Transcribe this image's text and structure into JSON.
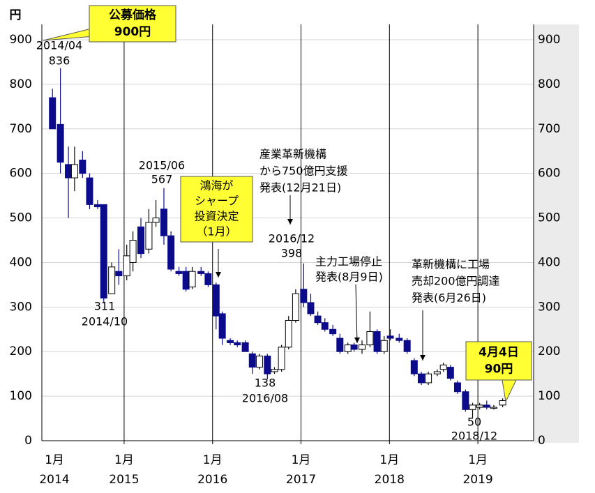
{
  "chart_data": {
    "type": "candlestick",
    "y_label": "円",
    "ylim": [
      0,
      900
    ],
    "yticks": [
      0,
      100,
      200,
      300,
      400,
      500,
      600,
      700,
      800,
      900
    ],
    "y2lim": [
      0,
      900
    ],
    "y2ticks": [
      0,
      100,
      200,
      300,
      400,
      500,
      600,
      700,
      800,
      900
    ],
    "xlim": [
      2014.07,
      2019.63
    ],
    "xticks": [
      {
        "value": 2014,
        "label": "2014",
        "month": "1月"
      },
      {
        "value": 2015,
        "label": "2015",
        "month": "1月"
      },
      {
        "value": 2016,
        "label": "2016",
        "month": "1月"
      },
      {
        "value": 2017,
        "label": "2017",
        "month": "1月"
      },
      {
        "value": 2018,
        "label": "2018",
        "month": "1月"
      },
      {
        "value": 2019,
        "label": "2019",
        "month": "1月"
      }
    ],
    "grid": true,
    "up_color": "#ffffff",
    "down_color": "#0b0b8c",
    "x": [
      2014.19,
      2014.28,
      2014.37,
      2014.44,
      2014.53,
      2014.61,
      2014.7,
      2014.77,
      2014.86,
      2014.94,
      2015.03,
      2015.1,
      2015.19,
      2015.28,
      2015.36,
      2015.45,
      2015.53,
      2015.62,
      2015.7,
      2015.77,
      2015.87,
      2015.95,
      2016.04,
      2016.11,
      2016.2,
      2016.28,
      2016.37,
      2016.45,
      2016.53,
      2016.62,
      2016.7,
      2016.78,
      2016.86,
      2016.94,
      2017.03,
      2017.11,
      2017.19,
      2017.27,
      2017.36,
      2017.44,
      2017.53,
      2017.6,
      2017.69,
      2017.78,
      2017.86,
      2017.94,
      2018.01,
      2018.11,
      2018.2,
      2018.28,
      2018.36,
      2018.44,
      2018.54,
      2018.61,
      2018.69,
      2018.77,
      2018.86,
      2018.94,
      2019.02,
      2019.1,
      2019.18,
      2019.28
    ],
    "open": [
      770,
      710,
      620,
      590,
      630,
      590,
      530,
      530,
      330,
      380,
      370,
      400,
      480,
      430,
      490,
      520,
      460,
      380,
      380,
      345,
      380,
      375,
      350,
      285,
      225,
      220,
      220,
      195,
      165,
      190,
      155,
      160,
      210,
      270,
      340,
      310,
      280,
      265,
      250,
      230,
      200,
      215,
      205,
      215,
      245,
      200,
      235,
      230,
      225,
      180,
      150,
      130,
      150,
      160,
      165,
      130,
      110,
      70,
      75,
      80,
      75,
      80
    ],
    "high": [
      790,
      836,
      660,
      660,
      650,
      600,
      540,
      530,
      400,
      430,
      440,
      470,
      500,
      520,
      540,
      567,
      470,
      390,
      390,
      390,
      390,
      380,
      355,
      290,
      230,
      225,
      225,
      200,
      195,
      195,
      165,
      215,
      280,
      340,
      398,
      330,
      290,
      275,
      260,
      240,
      220,
      220,
      225,
      290,
      250,
      235,
      250,
      240,
      230,
      185,
      155,
      155,
      160,
      175,
      170,
      135,
      115,
      85,
      85,
      90,
      80,
      95
    ],
    "low": [
      700,
      600,
      500,
      560,
      590,
      520,
      520,
      311,
      330,
      350,
      360,
      380,
      410,
      420,
      480,
      440,
      380,
      370,
      335,
      340,
      370,
      345,
      250,
      215,
      215,
      210,
      200,
      150,
      160,
      138,
      150,
      155,
      205,
      265,
      300,
      280,
      260,
      245,
      235,
      195,
      195,
      200,
      195,
      210,
      195,
      195,
      225,
      220,
      195,
      145,
      125,
      125,
      145,
      155,
      135,
      105,
      65,
      50,
      70,
      70,
      70,
      75
    ],
    "close": [
      700,
      625,
      590,
      620,
      600,
      530,
      525,
      320,
      390,
      370,
      415,
      450,
      420,
      490,
      500,
      460,
      385,
      375,
      340,
      380,
      375,
      350,
      280,
      230,
      220,
      215,
      200,
      165,
      190,
      150,
      160,
      210,
      270,
      330,
      310,
      285,
      265,
      250,
      240,
      200,
      215,
      205,
      215,
      245,
      200,
      225,
      230,
      225,
      200,
      150,
      130,
      150,
      155,
      170,
      140,
      110,
      70,
      80,
      80,
      75,
      75,
      90
    ],
    "annotations": [
      {
        "lines": [
          "2014/04",
          "836"
        ]
      },
      {
        "lines": [
          "311",
          "2014/10"
        ]
      },
      {
        "lines": [
          "2015/06",
          "567"
        ]
      },
      {
        "lines": [
          "138",
          "2016/08"
        ]
      },
      {
        "lines": [
          "2016/12",
          "398"
        ]
      },
      {
        "lines": [
          "50",
          "2018/12"
        ]
      },
      {
        "lines": [
          "産業革新機構",
          "から750億円支援",
          "発表(12月21日)"
        ]
      },
      {
        "lines": [
          "主力工場停止",
          "発表(8月9日)"
        ]
      },
      {
        "lines": [
          "革新機構に工場",
          "売却200億円調達",
          "発表(6月26日)"
        ]
      }
    ],
    "callouts": [
      {
        "lines": [
          "公募価格",
          "900円"
        ]
      },
      {
        "lines": [
          "鴻海が",
          "シャープ",
          "投資決定",
          "（1月）"
        ]
      },
      {
        "lines": [
          "4月4日",
          "90円"
        ]
      }
    ]
  }
}
